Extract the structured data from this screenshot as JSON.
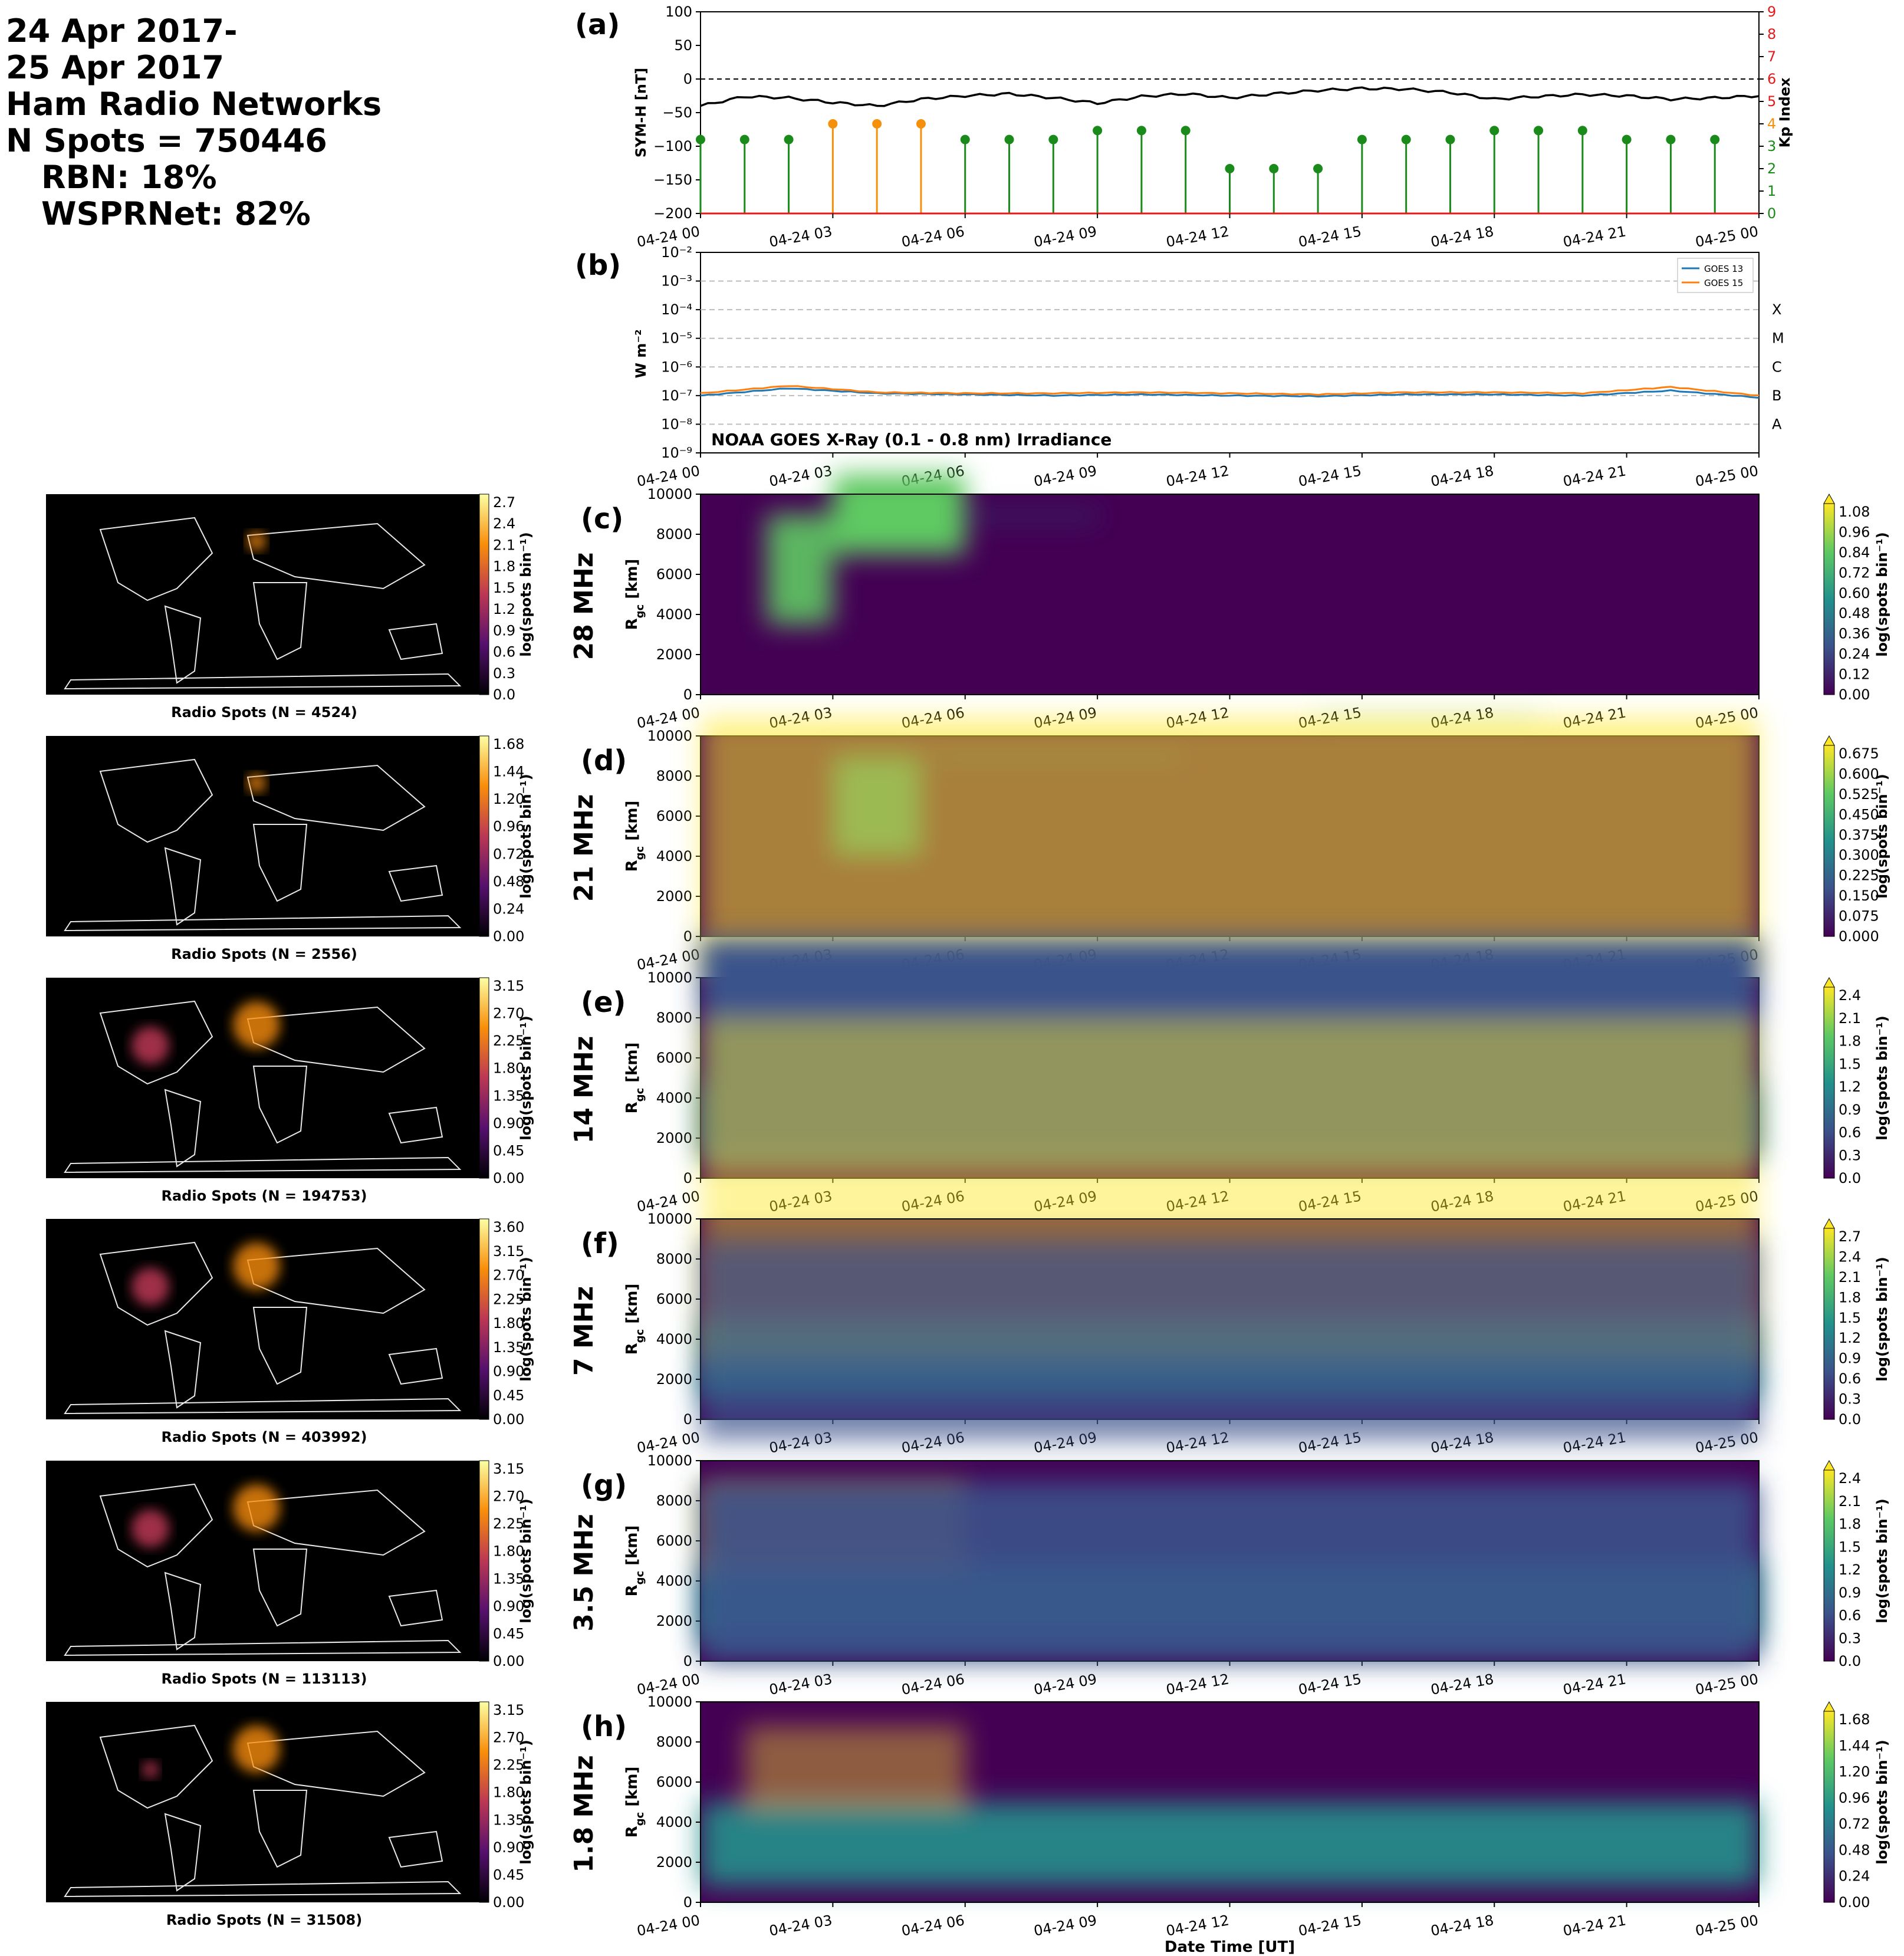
{
  "header": {
    "lines": [
      "24 Apr 2017-",
      "25 Apr 2017",
      "Ham Radio Networks",
      "N Spots = 750446"
    ],
    "indented": [
      "RBN: 18%",
      "WSPRNet: 82%"
    ]
  },
  "time_ticks": [
    "04-24 00",
    "04-24 03",
    "04-24 06",
    "04-24 09",
    "04-24 12",
    "04-24 15",
    "04-24 18",
    "04-24 21",
    "04-25 00"
  ],
  "panel_a": {
    "letter": "(a)",
    "ylabel_left": "SYM-H [nT]",
    "ylabel_right": "Kp Index",
    "yticks_left": [
      "100",
      "50",
      "0",
      "−50",
      "−100",
      "−150",
      "−200"
    ],
    "yticks_right": [
      "0",
      "1",
      "2",
      "3",
      "4",
      "5",
      "6",
      "7",
      "8",
      "9"
    ],
    "colors": {
      "symh": "#000000",
      "kp_quiet": "#1a8a1a",
      "kp_active": "#f5900c",
      "kp_storm": "#e31a1c"
    }
  },
  "panel_b": {
    "letter": "(b)",
    "ylabel": "W m⁻²",
    "yticks": [
      "10⁻²",
      "10⁻³",
      "10⁻⁴",
      "10⁻⁵",
      "10⁻⁶",
      "10⁻⁷",
      "10⁻⁸",
      "10⁻⁹"
    ],
    "flare_classes": [
      "X",
      "M",
      "C",
      "B",
      "A"
    ],
    "annotation": "NOAA GOES X-Ray (0.1 - 0.8 nm) Irradiance",
    "legend": [
      "GOES 13",
      "GOES 15"
    ],
    "colors": {
      "goes13": "#1f77b4",
      "goes15": "#ff7f0e"
    }
  },
  "panels": [
    {
      "letter": "(c)",
      "band": "28 MHz",
      "map_title": "Radio Spots (N = 4524)",
      "map_ticks": [
        "2.7",
        "2.4",
        "2.1",
        "1.8",
        "1.5",
        "1.2",
        "0.9",
        "0.6",
        "0.3",
        "0.0"
      ],
      "cb_ticks": [
        "1.08",
        "0.96",
        "0.84",
        "0.72",
        "0.60",
        "0.48",
        "0.36",
        "0.24",
        "0.12",
        "0.00"
      ],
      "ylabel": "R",
      "ylabel_sub": "gc",
      "ylabel_unit": " [km]"
    },
    {
      "letter": "(d)",
      "band": "21 MHz",
      "map_title": "Radio Spots (N = 2556)",
      "map_ticks": [
        "1.68",
        "1.44",
        "1.20",
        "0.96",
        "0.72",
        "0.48",
        "0.24",
        "0.00"
      ],
      "cb_ticks": [
        "0.675",
        "0.600",
        "0.525",
        "0.450",
        "0.375",
        "0.300",
        "0.225",
        "0.150",
        "0.075",
        "0.000"
      ],
      "ylabel": "R",
      "ylabel_sub": "gc",
      "ylabel_unit": " [km]"
    },
    {
      "letter": "(e)",
      "band": "14 MHz",
      "map_title": "Radio Spots (N = 194753)",
      "map_ticks": [
        "3.15",
        "2.70",
        "2.25",
        "1.80",
        "1.35",
        "0.90",
        "0.45",
        "0.00"
      ],
      "cb_ticks": [
        "2.4",
        "2.1",
        "1.8",
        "1.5",
        "1.2",
        "0.9",
        "0.6",
        "0.3",
        "0.0"
      ],
      "ylabel": "R",
      "ylabel_sub": "gc",
      "ylabel_unit": " [km]"
    },
    {
      "letter": "(f)",
      "band": "7 MHz",
      "map_title": "Radio Spots (N = 403992)",
      "map_ticks": [
        "3.60",
        "3.15",
        "2.70",
        "2.25",
        "1.80",
        "1.35",
        "0.90",
        "0.45",
        "0.00"
      ],
      "cb_ticks": [
        "2.7",
        "2.4",
        "2.1",
        "1.8",
        "1.5",
        "1.2",
        "0.9",
        "0.6",
        "0.3",
        "0.0"
      ],
      "ylabel": "R",
      "ylabel_sub": "gc",
      "ylabel_unit": " [km]"
    },
    {
      "letter": "(g)",
      "band": "3.5 MHz",
      "map_title": "Radio Spots (N = 113113)",
      "map_ticks": [
        "3.15",
        "2.70",
        "2.25",
        "1.80",
        "1.35",
        "0.90",
        "0.45",
        "0.00"
      ],
      "cb_ticks": [
        "2.4",
        "2.1",
        "1.8",
        "1.5",
        "1.2",
        "0.9",
        "0.6",
        "0.3",
        "0.0"
      ],
      "ylabel": "R",
      "ylabel_sub": "gc",
      "ylabel_unit": " [km]"
    },
    {
      "letter": "(h)",
      "band": "1.8 MHz",
      "map_title": "Radio Spots (N = 31508)",
      "map_ticks": [
        "3.15",
        "2.70",
        "2.25",
        "1.80",
        "1.35",
        "0.90",
        "0.45",
        "0.00"
      ],
      "cb_ticks": [
        "1.68",
        "1.44",
        "1.20",
        "0.96",
        "0.72",
        "0.48",
        "0.24",
        "0.00"
      ],
      "ylabel": "R",
      "ylabel_sub": "gc",
      "ylabel_unit": " [km]"
    }
  ],
  "rgc_yticks": [
    "10000",
    "8000",
    "6000",
    "4000",
    "2000",
    "0"
  ],
  "colorbar_label": "log(spots bin⁻¹)",
  "xlabel": "Date Time [UT]",
  "chart_data": [
    {
      "type": "line",
      "title": "",
      "xlabel": "",
      "ylabel": "SYM-H [nT]",
      "ylim": [
        -200,
        100
      ],
      "x": [
        "04-24 00",
        "04-24 01",
        "04-24 02",
        "04-24 03",
        "04-24 04",
        "04-24 05",
        "04-24 06",
        "04-24 07",
        "04-24 08",
        "04-24 09",
        "04-24 10",
        "04-24 11",
        "04-24 12",
        "04-24 13",
        "04-24 14",
        "04-24 15",
        "04-24 16",
        "04-24 17",
        "04-24 18",
        "04-24 19",
        "04-24 20",
        "04-24 21",
        "04-24 22",
        "04-24 23",
        "04-25 00"
      ],
      "series": [
        {
          "name": "SYM-H",
          "values": [
            -40,
            -26,
            -28,
            -35,
            -40,
            -30,
            -25,
            -22,
            -28,
            -36,
            -26,
            -22,
            -28,
            -22,
            -17,
            -14,
            -15,
            -20,
            -30,
            -26,
            -23,
            -25,
            -30,
            -28,
            -25
          ]
        }
      ]
    },
    {
      "type": "scatter",
      "title": "",
      "ylabel": "Kp Index",
      "ylim": [
        0,
        9
      ],
      "x": [
        "04-24 00",
        "04-24 01",
        "04-24 02",
        "04-24 03",
        "04-24 04",
        "04-24 05",
        "04-24 06",
        "04-24 07",
        "04-24 08",
        "04-24 09",
        "04-24 10",
        "04-24 11",
        "04-24 12",
        "04-24 13",
        "04-24 14",
        "04-24 15",
        "04-24 16",
        "04-24 17",
        "04-24 18",
        "04-24 19",
        "04-24 20",
        "04-24 21",
        "04-24 22",
        "04-24 23"
      ],
      "series": [
        {
          "name": "Kp",
          "values": [
            3.3,
            3.3,
            3.3,
            4.0,
            4.0,
            4.0,
            3.3,
            3.3,
            3.3,
            3.7,
            3.7,
            3.7,
            2.0,
            2.0,
            2.0,
            3.3,
            3.3,
            3.3,
            3.7,
            3.7,
            3.7,
            3.3,
            3.3,
            3.3
          ]
        }
      ]
    },
    {
      "type": "line",
      "title": "",
      "ylabel": "W m⁻²",
      "yscale": "log",
      "ylim": [
        1e-09,
        0.01
      ],
      "x": [
        "04-24 00",
        "04-24 02",
        "04-24 04",
        "04-24 06",
        "04-24 08",
        "04-24 10",
        "04-24 12",
        "04-24 14",
        "04-24 16",
        "04-24 18",
        "04-24 20",
        "04-24 22",
        "04-25 00"
      ],
      "series": [
        {
          "name": "GOES 13",
          "values": [
            1e-07,
            1.8e-07,
            1.2e-07,
            1.1e-07,
            1e-07,
            1.1e-07,
            1e-07,
            9.5e-08,
            1.1e-07,
            1.1e-07,
            1e-07,
            1.5e-07,
            8.5e-08
          ]
        },
        {
          "name": "GOES 15",
          "values": [
            1.2e-07,
            2.2e-07,
            1.3e-07,
            1.2e-07,
            1.2e-07,
            1.3e-07,
            1.2e-07,
            1.1e-07,
            1.3e-07,
            1.3e-07,
            1.2e-07,
            2e-07,
            1e-07
          ]
        }
      ]
    }
  ]
}
